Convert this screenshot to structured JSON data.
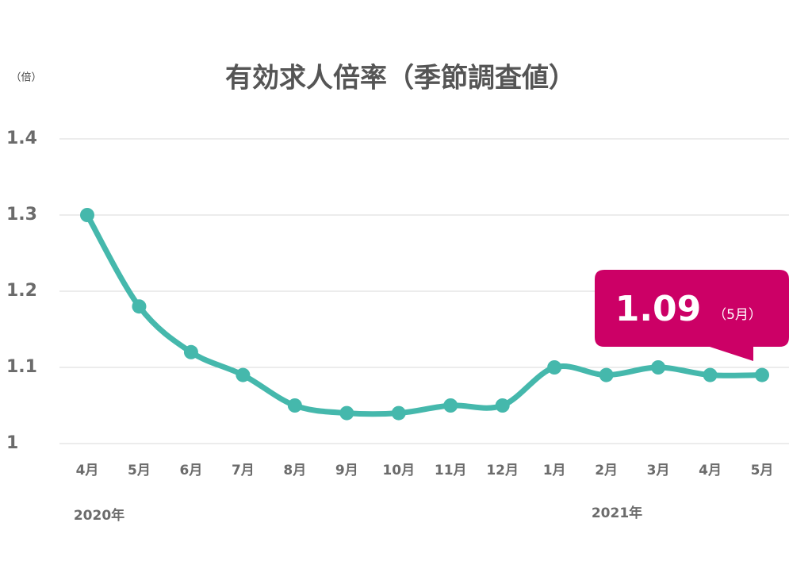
{
  "chart_data": {
    "type": "line",
    "title": "有効求人倍率（季節調査値）",
    "y_unit_label": "（倍）",
    "categories": [
      "4月",
      "5月",
      "6月",
      "7月",
      "8月",
      "9月",
      "10月",
      "11月",
      "12月",
      "1月",
      "2月",
      "3月",
      "4月",
      "5月"
    ],
    "values": [
      1.3,
      1.18,
      1.12,
      1.09,
      1.05,
      1.04,
      1.04,
      1.05,
      1.05,
      1.1,
      1.09,
      1.1,
      1.09,
      1.09
    ],
    "color": "#45b8ac",
    "ylim": [
      1,
      1.4
    ],
    "yticks": [
      1,
      1.1,
      1.2,
      1.3,
      1.4
    ],
    "grid": true,
    "year_labels": [
      "2020年",
      "2021年"
    ],
    "callout": {
      "note": "（5月）",
      "color": "#cc0066"
    }
  }
}
